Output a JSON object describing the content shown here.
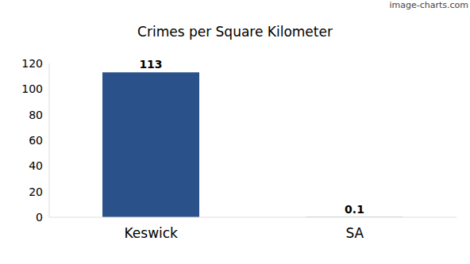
{
  "chart_data": {
    "type": "bar",
    "title": "Crimes per Square Kilometer",
    "annotations": [
      "image-charts.com"
    ],
    "categories": [
      "Keswick",
      "SA"
    ],
    "values": [
      113,
      0.1
    ],
    "color": "#2a5189",
    "ylim": [
      0,
      120
    ],
    "yticks": [
      0,
      20,
      40,
      60,
      80,
      100,
      120
    ],
    "grid": false,
    "data_labels": true
  }
}
